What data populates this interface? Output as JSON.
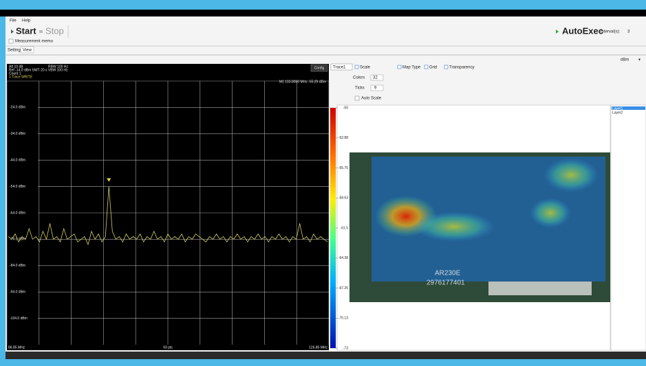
{
  "menu": [
    "File",
    "Help"
  ],
  "toolbar": {
    "start": "Start",
    "stop": "Stop",
    "memo": "Measurement memo",
    "autoexec": "AutoExec",
    "interval_label": "Interval(s):",
    "interval": "3"
  },
  "tabs": [
    "Setting",
    "View"
  ],
  "unit": "dBm",
  "spectrum": {
    "att": "Att 10 dB",
    "rbw": "RBW 100 Hz",
    "ref": "Ref -14.0 dBm SWT 20 s VBW 100 Hz",
    "count": "Count 1",
    "trace": "1 Trace WRITE",
    "marker": "M1 103.8000 MHz -55.29 dBm",
    "config": "Config",
    "ylim": [
      -114,
      -14
    ],
    "yticks": [
      {
        "value": -24,
        "label": "-24.0 dBm"
      },
      {
        "value": -34,
        "label": "-34.0 dBm"
      },
      {
        "value": -44,
        "label": "-44.0 dBm"
      },
      {
        "value": -54,
        "label": "-54.0 dBm"
      },
      {
        "value": -64,
        "label": "-64.0 dBm"
      },
      {
        "value": -74,
        "label": "-74.0 dBm"
      },
      {
        "value": -84,
        "label": "-84.0 dBm"
      },
      {
        "value": -94,
        "label": "-94.0 dBm"
      },
      {
        "value": -104,
        "label": "-104.0 dBm"
      }
    ],
    "start": "86.85 MHz",
    "points": "93 pts",
    "stop": "126.85 MHz",
    "values": [
      -73,
      -74,
      -72,
      -75,
      -73,
      -74,
      -70,
      -74,
      -73,
      -75,
      -71,
      -74,
      -68,
      -74,
      -73,
      -75,
      -70,
      -74,
      -73,
      -72,
      -75,
      -74,
      -73,
      -76,
      -71,
      -74,
      -72,
      -75,
      -73,
      -54,
      -71,
      -74,
      -73,
      -75,
      -72,
      -74,
      -73,
      -74,
      -72,
      -75,
      -73,
      -74,
      -71,
      -74,
      -73,
      -75,
      -72,
      -74,
      -73,
      -74,
      -72,
      -75,
      -73,
      -74,
      -72,
      -73,
      -74,
      -75,
      -73,
      -74,
      -72,
      -74,
      -73,
      -75,
      -73,
      -74,
      -72,
      -74,
      -73,
      -75,
      -73,
      -74,
      -72,
      -74,
      -73,
      -75,
      -73,
      -74,
      -72,
      -74,
      -73,
      -75,
      -73,
      -74,
      -68,
      -74,
      -73,
      -75,
      -72,
      -74,
      -73,
      -74,
      -75
    ]
  },
  "heatmap": {
    "trace": "Trace1",
    "options": [
      "Scale",
      "Map Type",
      "Grid",
      "Transparency"
    ],
    "colors_label": "Colors",
    "colors": "32",
    "ticks_label": "Ticks",
    "ticks": "9",
    "auto_scale": "Auto Scale",
    "clim": [
      -73,
      -50
    ],
    "cticks": [
      -50,
      -52.88,
      -55.75,
      -58.63,
      -61.5,
      -64.38,
      -67.25,
      -70.13,
      -73
    ],
    "board_text": [
      "AR230E",
      "2976177401"
    ],
    "layers": [
      "Layer1",
      "Layer2"
    ]
  }
}
